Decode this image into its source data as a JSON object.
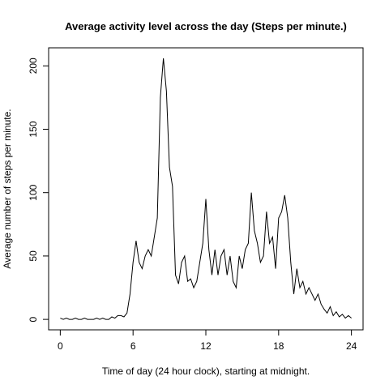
{
  "chart_data": {
    "type": "line",
    "title": "Average activity level across the day (Steps per minute.)",
    "x_label": "Time of day (24 hour clock), starting at midnight.",
    "y_label": "Average number of steps per minute.",
    "x": [
      0,
      0.25,
      0.5,
      0.75,
      1,
      1.25,
      1.5,
      1.75,
      2,
      2.25,
      2.5,
      2.75,
      3,
      3.25,
      3.5,
      3.75,
      4,
      4.25,
      4.5,
      4.75,
      5,
      5.25,
      5.5,
      5.75,
      6,
      6.25,
      6.5,
      6.75,
      7,
      7.25,
      7.5,
      7.75,
      8,
      8.25,
      8.5,
      8.75,
      9,
      9.25,
      9.5,
      9.75,
      10,
      10.25,
      10.5,
      10.75,
      11,
      11.25,
      11.5,
      11.75,
      12,
      12.25,
      12.5,
      12.75,
      13,
      13.25,
      13.5,
      13.75,
      14,
      14.25,
      14.5,
      14.75,
      15,
      15.25,
      15.5,
      15.75,
      16,
      16.25,
      16.5,
      16.75,
      17,
      17.25,
      17.5,
      17.75,
      18,
      18.25,
      18.5,
      18.75,
      19,
      19.25,
      19.5,
      19.75,
      20,
      20.25,
      20.5,
      20.75,
      21,
      21.25,
      21.5,
      21.75,
      22,
      22.25,
      22.5,
      22.75,
      23,
      23.25,
      23.5,
      23.75,
      24
    ],
    "series": [
      {
        "color": "#000000",
        "values": [
          1,
          0,
          1,
          0,
          0,
          1,
          0,
          0,
          1,
          0,
          0,
          0,
          1,
          0,
          1,
          0,
          0,
          2,
          1,
          3,
          3,
          2,
          5,
          20,
          45,
          62,
          45,
          40,
          50,
          55,
          50,
          65,
          80,
          175,
          206,
          180,
          120,
          105,
          35,
          28,
          45,
          50,
          30,
          32,
          25,
          30,
          45,
          60,
          95,
          55,
          35,
          55,
          35,
          50,
          55,
          35,
          50,
          30,
          25,
          50,
          40,
          55,
          60,
          100,
          70,
          60,
          45,
          50,
          85,
          60,
          65,
          40,
          80,
          85,
          98,
          80,
          45,
          20,
          40,
          25,
          30,
          20,
          25,
          20,
          15,
          20,
          12,
          8,
          5,
          10,
          3,
          6,
          2,
          4,
          1,
          3,
          1
        ]
      }
    ],
    "xlim": [
      -0.96,
      24.96
    ],
    "ylim": [
      -8.24,
      214.24
    ],
    "xticks": [
      0,
      6,
      12,
      18,
      24
    ],
    "yticks": [
      0,
      50,
      100,
      150,
      200
    ]
  }
}
